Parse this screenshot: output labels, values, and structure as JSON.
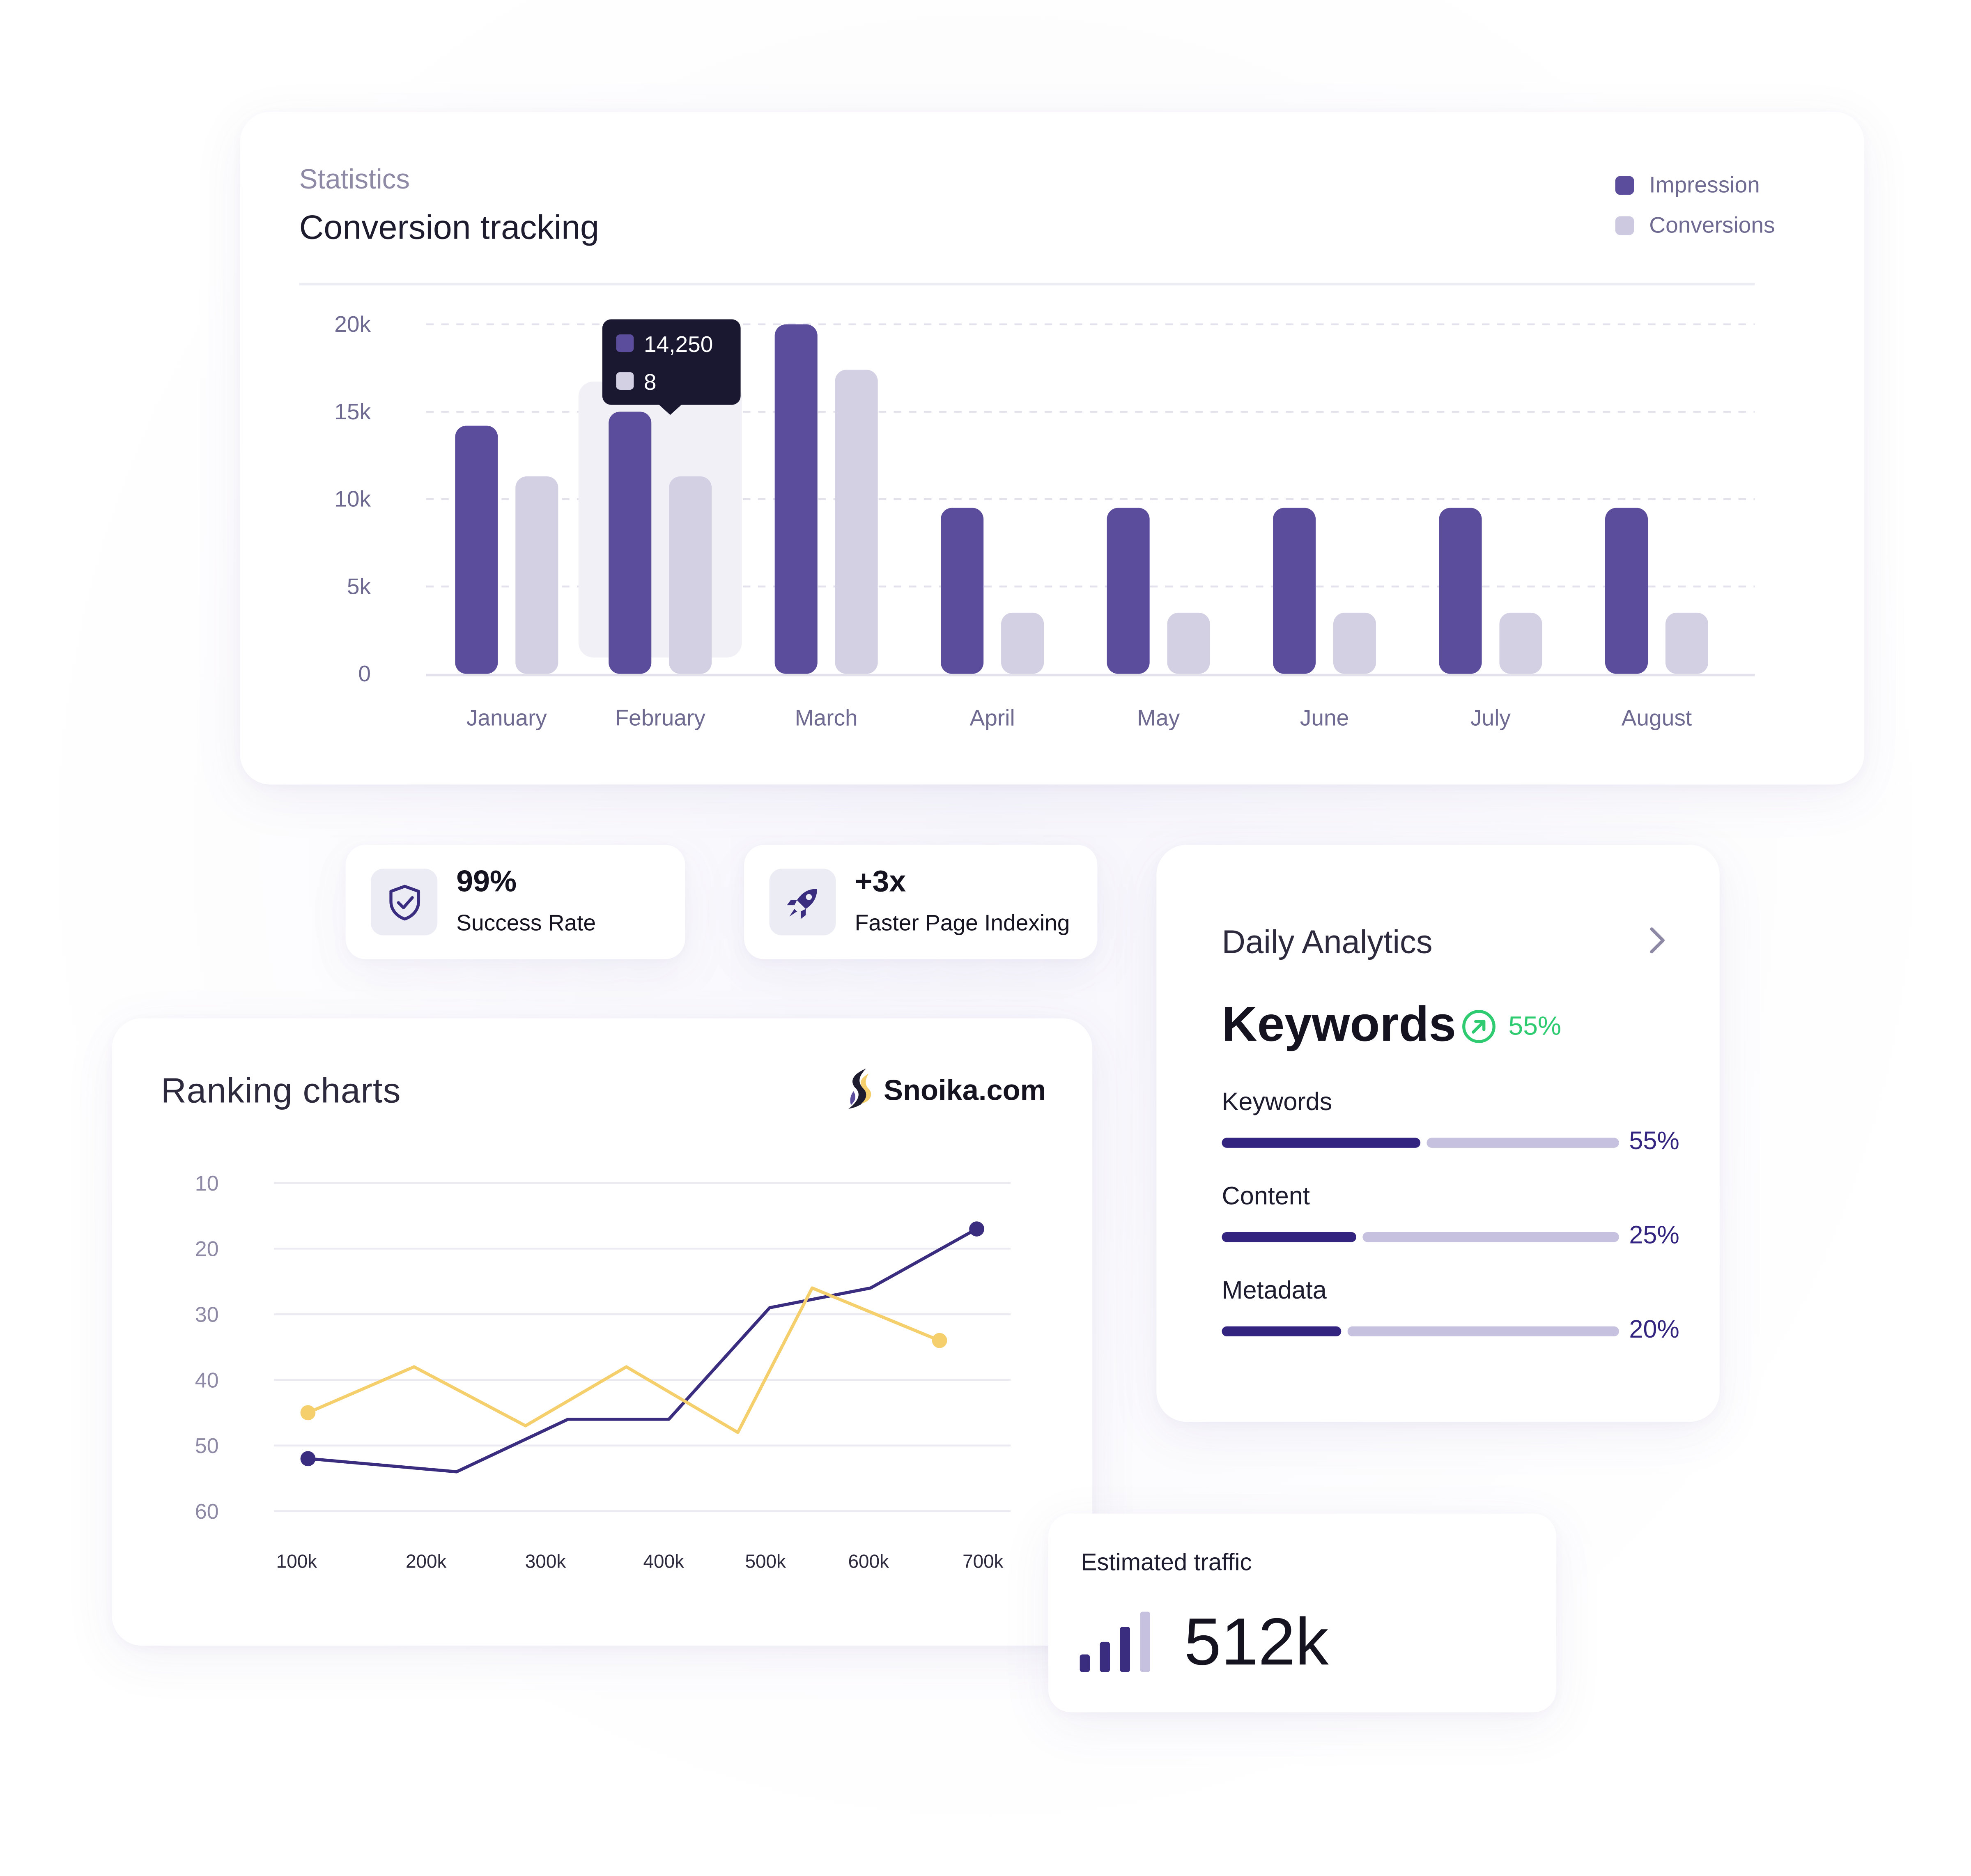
{
  "conversion": {
    "eyebrow": "Statistics",
    "title": "Conversion tracking",
    "legend": [
      {
        "label": "Impression",
        "color": "#5b4d9b"
      },
      {
        "label": "Conversions",
        "color": "#cdc9e0"
      }
    ],
    "tooltip": {
      "impression": "14,250",
      "conversions": "8"
    }
  },
  "stats": {
    "success": {
      "value": "99%",
      "label": "Success Rate",
      "icon": "shield-check-icon"
    },
    "indexing": {
      "value": "+3x",
      "label": "Faster Page Indexing",
      "icon": "rocket-icon"
    }
  },
  "daily": {
    "title": "Daily Analytics",
    "headline": "Keywords",
    "headline_change": "55%",
    "metrics": [
      {
        "label": "Keywords",
        "pct_text": "55%",
        "fill": 0.5
      },
      {
        "label": "Content",
        "pct_text": "25%",
        "fill": 0.34
      },
      {
        "label": "Metadata",
        "pct_text": "20%",
        "fill": 0.3
      }
    ]
  },
  "ranking": {
    "title": "Ranking charts",
    "brand": "Snoika.com"
  },
  "traffic": {
    "label": "Estimated traffic",
    "value": "512k"
  },
  "chart_data": [
    {
      "type": "bar",
      "title": "Conversion tracking",
      "categories": [
        "January",
        "February",
        "March",
        "April",
        "May",
        "June",
        "July",
        "August"
      ],
      "series": [
        {
          "name": "Impression",
          "color": "#5b4d9b",
          "values": [
            14200,
            15000,
            20000,
            9500,
            9500,
            9500,
            9500,
            9500
          ]
        },
        {
          "name": "Conversions",
          "color": "#d3d0e4",
          "values": [
            11300,
            11300,
            17400,
            3500,
            3500,
            3500,
            3500,
            3500
          ]
        }
      ],
      "yticks": [
        "0",
        "5k",
        "10k",
        "15k",
        "20k"
      ],
      "ylim": [
        0,
        20000
      ],
      "highlight_category": "February",
      "grid": true,
      "legend": "top-right"
    },
    {
      "type": "line",
      "title": "Ranking charts",
      "x_ticks": [
        "100k",
        "200k",
        "300k",
        "400k",
        "500k",
        "600k",
        "700k"
      ],
      "y_ticks": [
        "10",
        "20",
        "30",
        "40",
        "50",
        "60"
      ],
      "ylim": [
        10,
        60
      ],
      "y_inverted": true,
      "grid": true,
      "series": [
        {
          "color": "#3a2d80",
          "x": [
            100,
            240,
            345,
            440,
            535,
            630,
            730,
            860
          ],
          "y": [
            52,
            54,
            46,
            46,
            29,
            26,
            17,
            17
          ]
        },
        {
          "color": "#f4cf6b",
          "x": [
            100,
            200,
            305,
            400,
            505,
            575,
            695,
            860
          ],
          "y": [
            45,
            38,
            47,
            38,
            48,
            26,
            34,
            34
          ]
        }
      ]
    }
  ]
}
